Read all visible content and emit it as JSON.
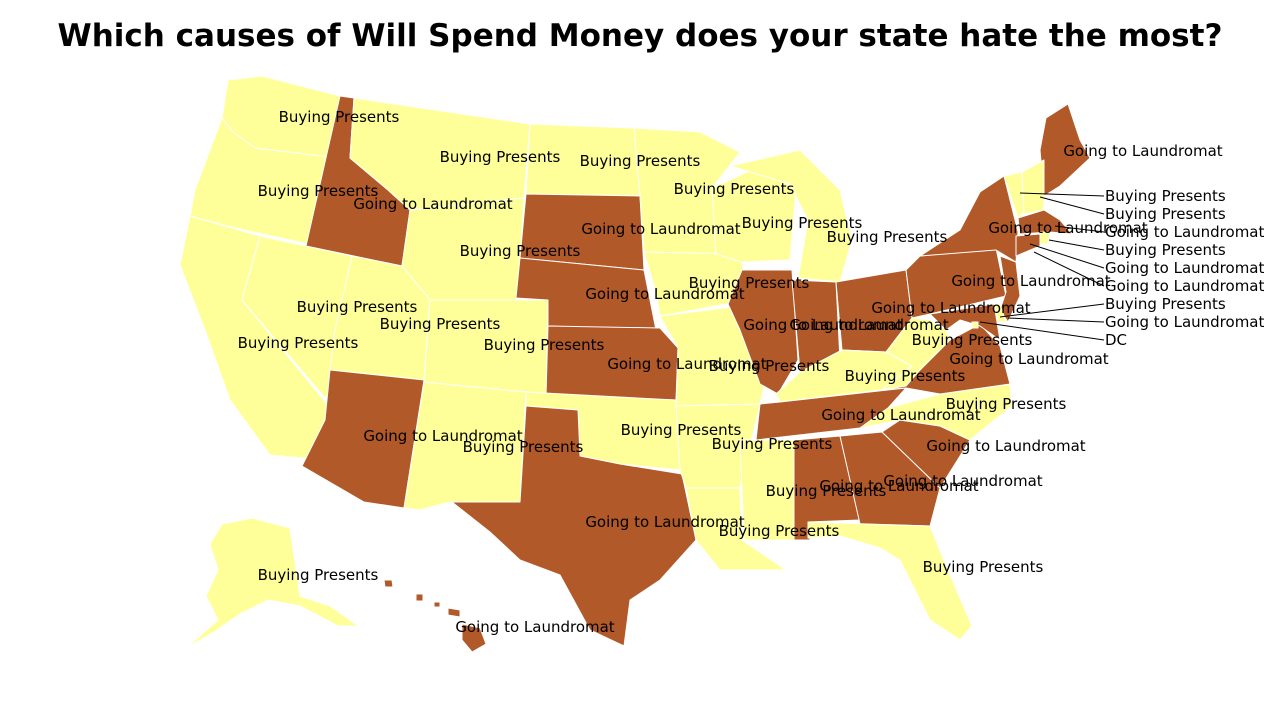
{
  "title": "Which causes of Will Spend Money does your state hate the most?",
  "colors": {
    "Buying Presents": "#ffff99",
    "Going to Laundromat": "#b15928"
  },
  "states": [
    {
      "id": "WA",
      "value": "Buying Presents"
    },
    {
      "id": "OR",
      "value": "Buying Presents"
    },
    {
      "id": "CA",
      "value": "Buying Presents"
    },
    {
      "id": "NV",
      "value": "Buying Presents"
    },
    {
      "id": "ID",
      "value": "Going to Laundromat"
    },
    {
      "id": "MT",
      "value": "Buying Presents"
    },
    {
      "id": "WY",
      "value": "Buying Presents"
    },
    {
      "id": "UT",
      "value": "Buying Presents"
    },
    {
      "id": "AZ",
      "value": "Going to Laundromat"
    },
    {
      "id": "CO",
      "value": "Buying Presents"
    },
    {
      "id": "NM",
      "value": "Buying Presents"
    },
    {
      "id": "ND",
      "value": "Buying Presents"
    },
    {
      "id": "SD",
      "value": "Going to Laundromat"
    },
    {
      "id": "NE",
      "value": "Going to Laundromat"
    },
    {
      "id": "KS",
      "value": "Going to Laundromat"
    },
    {
      "id": "OK",
      "value": "Buying Presents"
    },
    {
      "id": "TX",
      "value": "Going to Laundromat"
    },
    {
      "id": "MN",
      "value": "Buying Presents"
    },
    {
      "id": "IA",
      "value": "Buying Presents"
    },
    {
      "id": "MO",
      "value": "Buying Presents"
    },
    {
      "id": "AR",
      "value": "Buying Presents"
    },
    {
      "id": "LA",
      "value": "Buying Presents"
    },
    {
      "id": "WI",
      "value": "Buying Presents"
    },
    {
      "id": "IL",
      "value": "Going to Laundromat"
    },
    {
      "id": "MI",
      "value": "Buying Presents"
    },
    {
      "id": "IN",
      "value": "Going to Laundromat"
    },
    {
      "id": "OH",
      "value": "Going to Laundromat"
    },
    {
      "id": "KY",
      "value": "Buying Presents"
    },
    {
      "id": "TN",
      "value": "Going to Laundromat"
    },
    {
      "id": "MS",
      "value": "Buying Presents"
    },
    {
      "id": "AL",
      "value": "Going to Laundromat"
    },
    {
      "id": "GA",
      "value": "Going to Laundromat"
    },
    {
      "id": "FL",
      "value": "Buying Presents"
    },
    {
      "id": "SC",
      "value": "Going to Laundromat"
    },
    {
      "id": "NC",
      "value": "Buying Presents"
    },
    {
      "id": "VA",
      "value": "Going to Laundromat"
    },
    {
      "id": "WV",
      "value": "Buying Presents"
    },
    {
      "id": "PA",
      "value": "Going to Laundromat"
    },
    {
      "id": "NY",
      "value": "Going to Laundromat"
    },
    {
      "id": "ME",
      "value": "Going to Laundromat"
    },
    {
      "id": "VT",
      "value": "Buying Presents"
    },
    {
      "id": "NH",
      "value": "Buying Presents"
    },
    {
      "id": "MA",
      "value": "Going to Laundromat"
    },
    {
      "id": "RI",
      "value": "Buying Presents"
    },
    {
      "id": "CT",
      "value": "Going to Laundromat"
    },
    {
      "id": "NJ",
      "value": "Going to Laundromat"
    },
    {
      "id": "DE",
      "value": "Buying Presents"
    },
    {
      "id": "MD",
      "value": "Going to Laundromat"
    },
    {
      "id": "DC",
      "value": "Buying Presents"
    },
    {
      "id": "AK",
      "value": "Buying Presents"
    },
    {
      "id": "HI",
      "value": "Going to Laundromat"
    }
  ],
  "callouts": [
    {
      "id": "VT",
      "text": "Buying Presents"
    },
    {
      "id": "NH",
      "text": "Buying Presents"
    },
    {
      "id": "MA",
      "text": "Going to Laundromat"
    },
    {
      "id": "RI",
      "text": "Buying Presents"
    },
    {
      "id": "CT",
      "text": "Going to Laundromat"
    },
    {
      "id": "NJ",
      "text": "Going to Laundromat"
    },
    {
      "id": "DE",
      "text": "Buying Presents"
    },
    {
      "id": "MD",
      "text": "Going to Laundromat"
    },
    {
      "id": "DC",
      "text": "DC"
    }
  ]
}
